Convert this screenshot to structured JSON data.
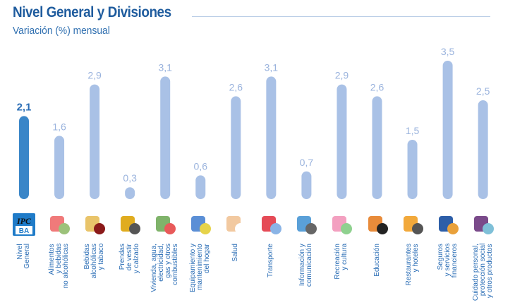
{
  "chart_data": {
    "type": "bar",
    "title": "Nivel General y Divisiones",
    "subtitle": "Variación (%) mensual",
    "xlabel": "",
    "ylabel": "",
    "ylim": [
      0,
      3.5
    ],
    "grid": false,
    "categories": [
      "Nivel General",
      "Alimentos y bebidas no alcohólicas",
      "Bebidas alcohólicas y tabaco",
      "Prendas de vestir y calzado",
      "Vivienda, agua, electricidad, gas y otros combustibles",
      "Equipamiento y mantenimiento del hogar",
      "Salud",
      "Transporte",
      "Información y comunicación",
      "Recreación y cultura",
      "Educación",
      "Restaurantes y hoteles",
      "Seguros y servicios financieros",
      "Cuidado personal, protección social y otros productos"
    ],
    "category_labels": [
      "Nivel\nGeneral",
      "Alimentos\ny bebidas\nno alcohólicas",
      "Bebidas\nalcohólicas\ny tabaco",
      "Prendas\nde vestir\ny calzado",
      "Vivienda, agua,\nelectricidad,\ngas y otros\ncombustibles",
      "Equipamiento y\nmantenimiento\ndel hogar",
      "Salud",
      "Transporte",
      "Información y\ncomunicación",
      "Recreación\ny cultura",
      "Educación",
      "Restaurantes\ny hoteles",
      "Seguros\ny servicios\nfinancieros",
      "Cuidado personal,\nprotección social\ny otros productos"
    ],
    "values": [
      2.1,
      1.6,
      2.9,
      0.3,
      3.1,
      0.6,
      2.6,
      3.1,
      0.7,
      2.9,
      2.6,
      1.5,
      3.5,
      2.5
    ],
    "value_labels": [
      "2,1",
      "1,6",
      "2,9",
      "0,3",
      "3,1",
      "0,6",
      "2,6",
      "3,1",
      "0,7",
      "2,9",
      "2,6",
      "1,5",
      "3,5",
      "2,5"
    ],
    "highlight_index": 0
  },
  "icon_text": {
    "ipc": "IPC",
    "ba": "BA"
  },
  "icons": [
    "ipc-logo-icon",
    "groceries-icon",
    "wine-bottles-icon",
    "jacket-shoe-icon",
    "house-paint-icon",
    "washing-machine-icon",
    "doctor-icon",
    "car-plane-icon",
    "computer-phone-icon",
    "theater-masks-icon",
    "school-building-icon",
    "cutlery-cloche-icon",
    "bank-icon",
    "hairbrush-cosmetics-icon"
  ],
  "colors": {
    "highlight": "#3a86c8",
    "bar": "#a9c1e6",
    "highlight_label": "#2a6db5",
    "label": "#9ab3dd",
    "title": "#1f5c9e"
  }
}
